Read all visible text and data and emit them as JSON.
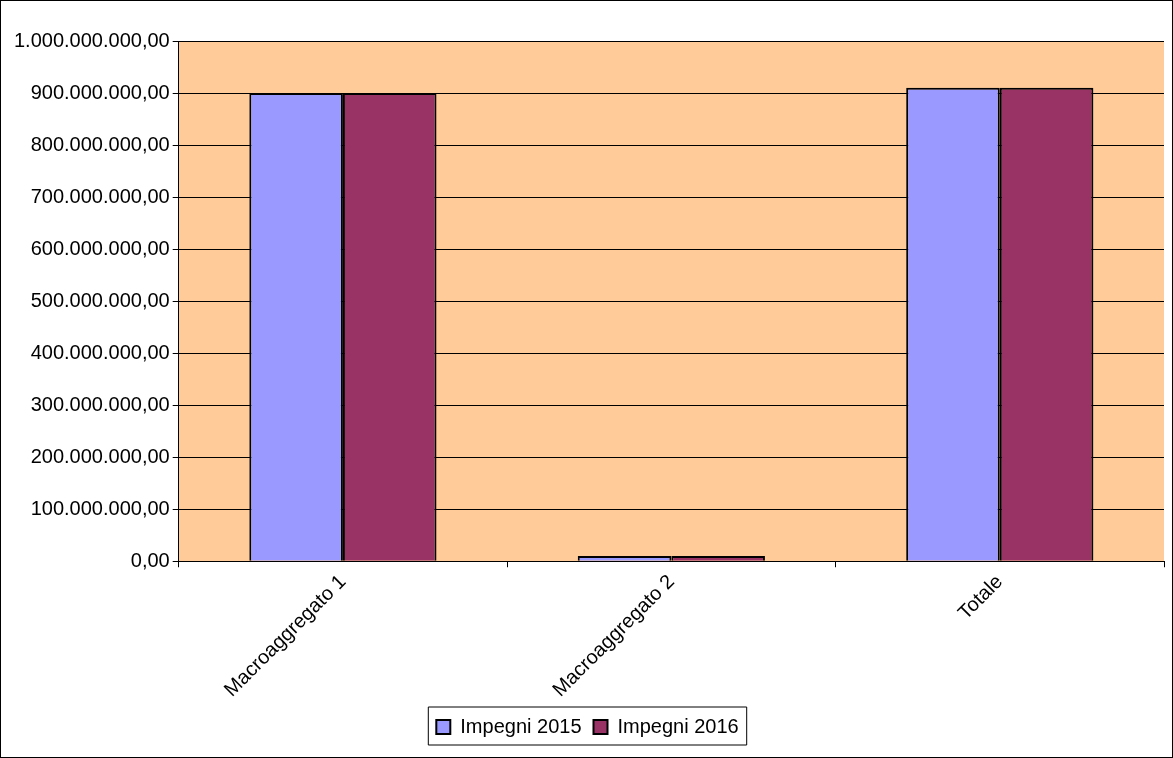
{
  "chart_data": {
    "type": "bar",
    "categories": [
      "Macroaggregato 1",
      "Macroaggregato 2",
      "Totale"
    ],
    "series": [
      {
        "name": "Impegni 2015",
        "color": "#9999ff",
        "values": [
          900000000,
          10000000,
          910000000
        ]
      },
      {
        "name": "Impegni 2016",
        "color": "#993366",
        "values": [
          900000000,
          10000000,
          910000000
        ]
      }
    ],
    "ylim": [
      0,
      1000000000
    ],
    "yticks": [
      {
        "value": 0,
        "label": "0,00"
      },
      {
        "value": 100000000,
        "label": "100.000.000,00"
      },
      {
        "value": 200000000,
        "label": "200.000.000,00"
      },
      {
        "value": 300000000,
        "label": "300.000.000,00"
      },
      {
        "value": 400000000,
        "label": "400.000.000,00"
      },
      {
        "value": 500000000,
        "label": "500.000.000,00"
      },
      {
        "value": 600000000,
        "label": "600.000.000,00"
      },
      {
        "value": 700000000,
        "label": "700.000.000,00"
      },
      {
        "value": 800000000,
        "label": "800.000.000,00"
      },
      {
        "value": 900000000,
        "label": "900.000.000,00"
      },
      {
        "value": 1000000000,
        "label": "1.000.000.000,00"
      }
    ],
    "grid": "y",
    "legend": "bottom"
  }
}
